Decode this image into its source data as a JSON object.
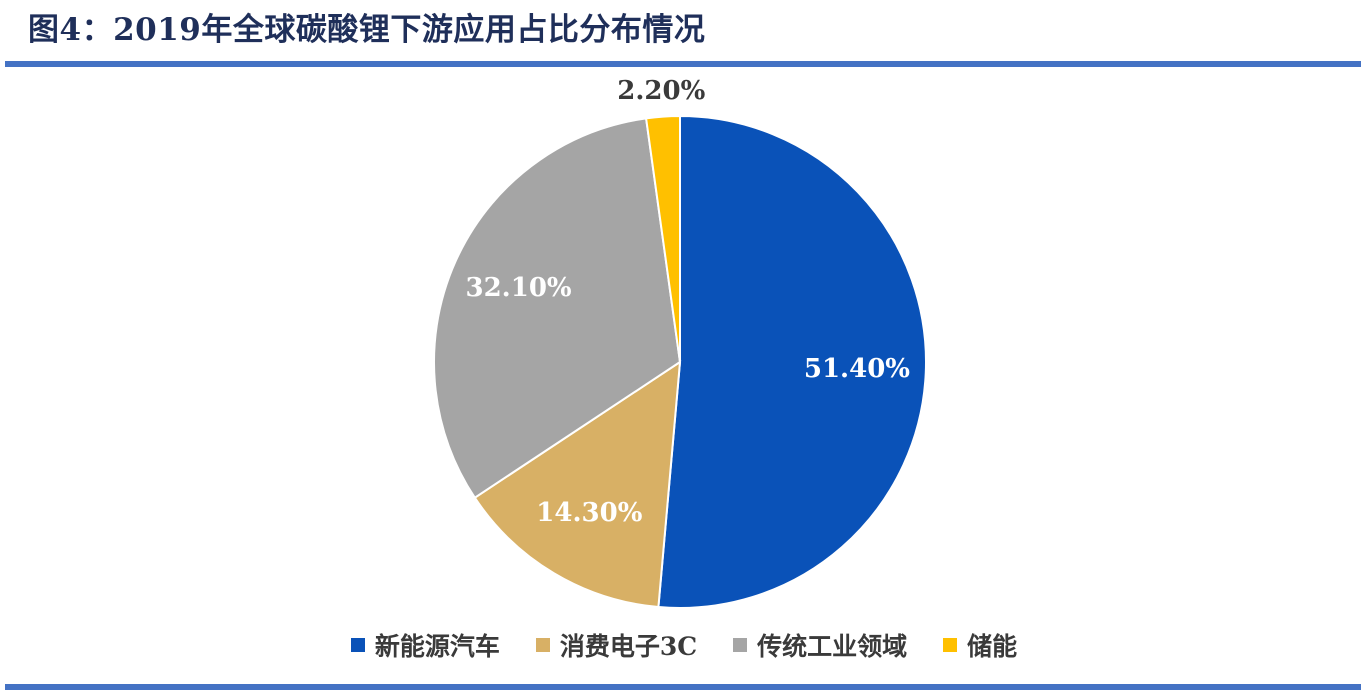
{
  "title": "图4：2019年全球碳酸锂下游应用占比分布情况",
  "chart_data": {
    "type": "pie",
    "title": "图4：2019年全球碳酸锂下游应用占比分布情况",
    "start_angle_deg": 0,
    "direction": "clockwise",
    "slices": [
      {
        "name": "新能源汽车",
        "value": 51.4,
        "label": "51.40%",
        "color": "#0a52b8",
        "label_color": "#ffffff"
      },
      {
        "name": "消费电子3C",
        "value": 14.3,
        "label": "14.30%",
        "color": "#d8b065",
        "label_color": "#ffffff"
      },
      {
        "name": "传统工业领域",
        "value": 32.1,
        "label": "32.10%",
        "color": "#a5a5a5",
        "label_color": "#ffffff"
      },
      {
        "name": "储能",
        "value": 2.2,
        "label": "2.20%",
        "color": "#ffc000",
        "label_color": "#3a3a3a"
      }
    ],
    "legend_position": "bottom"
  }
}
